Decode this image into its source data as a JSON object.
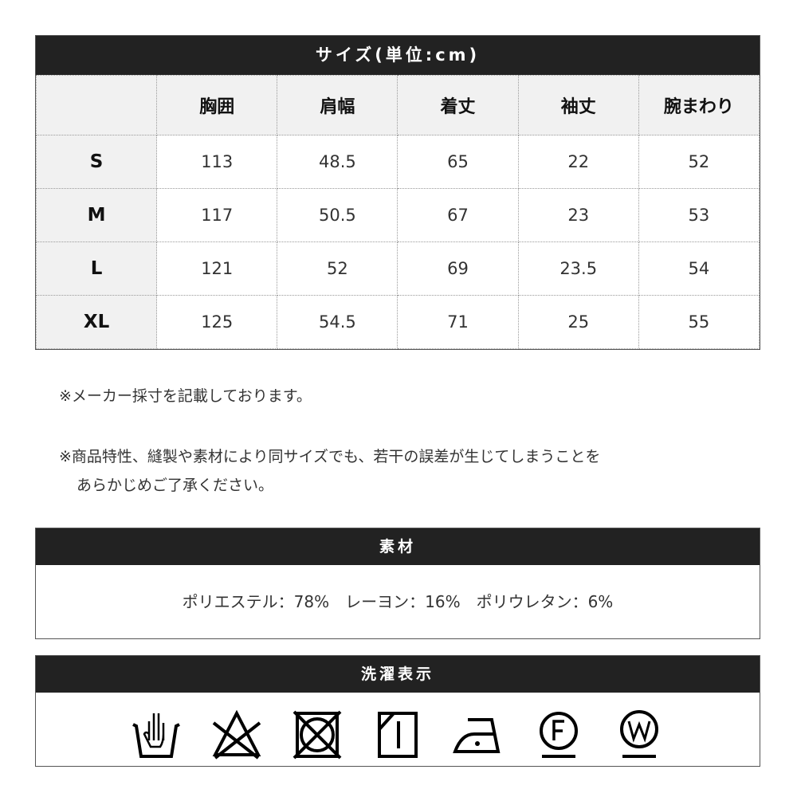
{
  "size_table": {
    "title": "サイズ(単位:cm)",
    "columns": [
      "",
      "胸囲",
      "肩幅",
      "着丈",
      "袖丈",
      "腕まわり"
    ],
    "rows": [
      {
        "size": "S",
        "values": [
          "113",
          "48.5",
          "65",
          "22",
          "52"
        ]
      },
      {
        "size": "M",
        "values": [
          "117",
          "50.5",
          "67",
          "23",
          "53"
        ]
      },
      {
        "size": "L",
        "values": [
          "121",
          "52",
          "69",
          "23.5",
          "54"
        ]
      },
      {
        "size": "XL",
        "values": [
          "125",
          "54.5",
          "71",
          "25",
          "55"
        ]
      }
    ]
  },
  "notes": [
    "※メーカー採寸を記載しております。",
    "※商品特性、縫製や素材により同サイズでも、若干の誤差が生じてしまうことを",
    "あらかじめご了承ください。"
  ],
  "material": {
    "title": "素材",
    "text": "ポリエステル：78%　レーヨン：16%　ポリウレタン：6%"
  },
  "care": {
    "title": "洗濯表示",
    "icons": [
      "hand-wash-icon",
      "no-bleach-icon",
      "no-tumble-dry-icon",
      "line-dry-shade-icon",
      "iron-low-icon",
      "dry-clean-f-icon",
      "wet-clean-w-icon"
    ]
  }
}
